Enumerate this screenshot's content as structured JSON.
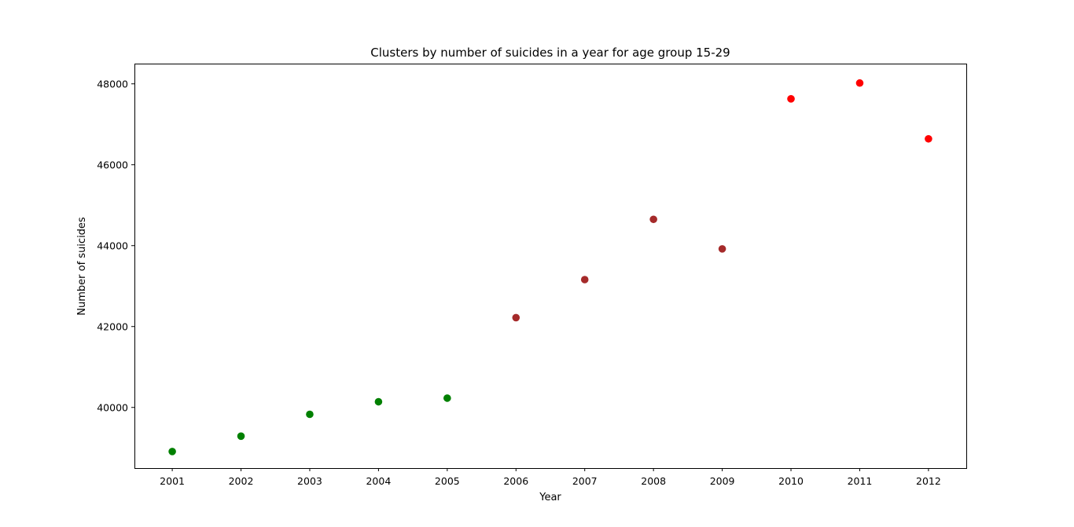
{
  "chart_data": {
    "type": "scatter",
    "title": "Clusters by number of suicides in a year for age group 15-29",
    "xlabel": "Year",
    "ylabel": "Number of suicides",
    "xlim": [
      2000.45,
      2012.55
    ],
    "ylim": [
      38500,
      48500
    ],
    "x_ticks": [
      2001,
      2002,
      2003,
      2004,
      2005,
      2006,
      2007,
      2008,
      2009,
      2010,
      2011,
      2012
    ],
    "x_tick_labels": [
      "2001",
      "2002",
      "2003",
      "2004",
      "2005",
      "2006",
      "2007",
      "2008",
      "2009",
      "2010",
      "2011",
      "2012"
    ],
    "y_ticks": [
      40000,
      42000,
      44000,
      46000,
      48000
    ],
    "y_tick_labels": [
      "40000",
      "42000",
      "44000",
      "46000",
      "48000"
    ],
    "grid": false,
    "legend": "none",
    "clusters": [
      {
        "color": "#008000",
        "points": [
          {
            "x": 2001,
            "y": 38910
          },
          {
            "x": 2002,
            "y": 39290
          },
          {
            "x": 2003,
            "y": 39830
          },
          {
            "x": 2004,
            "y": 40140
          },
          {
            "x": 2005,
            "y": 40230
          }
        ]
      },
      {
        "color": "#a52a2a",
        "points": [
          {
            "x": 2006,
            "y": 42220
          },
          {
            "x": 2007,
            "y": 43160
          },
          {
            "x": 2008,
            "y": 44650
          },
          {
            "x": 2009,
            "y": 43920
          }
        ]
      },
      {
        "color": "#ff0000",
        "points": [
          {
            "x": 2010,
            "y": 47630
          },
          {
            "x": 2011,
            "y": 48020
          },
          {
            "x": 2012,
            "y": 46640
          }
        ]
      }
    ]
  }
}
